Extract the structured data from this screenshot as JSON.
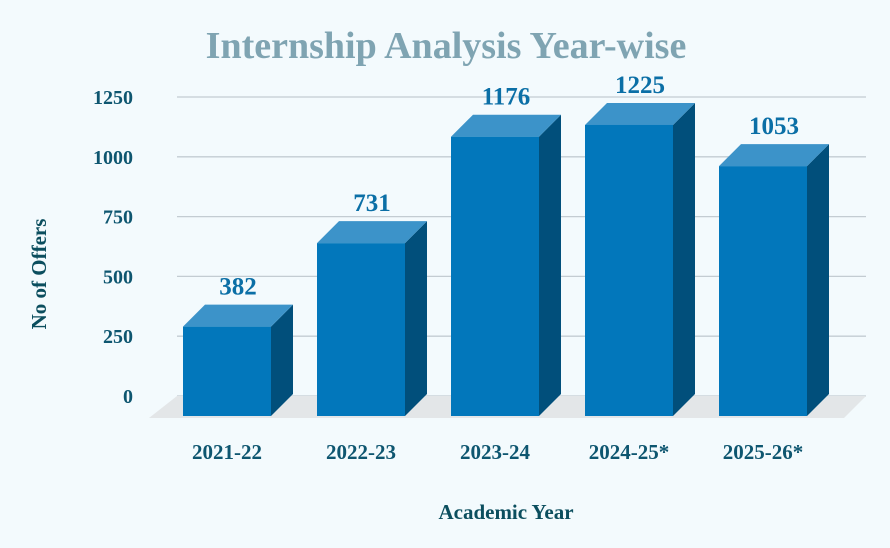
{
  "chart_data": {
    "type": "bar",
    "title": "Internship Analysis Year-wise",
    "xlabel": "Academic Year",
    "ylabel": "No of Offers",
    "categories": [
      "2021-22",
      "2022-23",
      "2023-24",
      "2024-25*",
      "2025-26*"
    ],
    "values": [
      382,
      731,
      1176,
      1225,
      1053
    ],
    "value_labels": [
      "382",
      "731",
      "1176",
      "1225",
      "1053"
    ],
    "ylim": [
      0,
      1250
    ],
    "yticks": [
      0,
      250,
      500,
      750,
      1000,
      1250
    ],
    "ytick_labels": [
      "0",
      "250",
      "500",
      "750",
      "1000",
      "1250"
    ],
    "grid": true,
    "legend": "none",
    "colors": {
      "bar_front": "#0277bb",
      "bar_top": "#3c93c9",
      "bar_side": "#014f7b",
      "floor": "#e3e6e8",
      "grid": "#c3ccd2",
      "title": "#7fa4b2",
      "tick_text": "#0e5670",
      "data_label": "#0b6fa6",
      "axis_title": "#0b4e5e"
    }
  }
}
